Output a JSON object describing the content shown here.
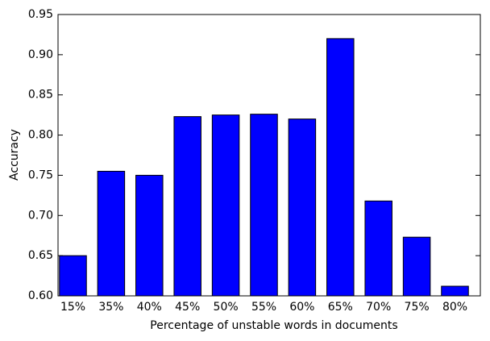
{
  "chart_data": {
    "type": "bar",
    "x_label": "Percentage of unstable words in documents",
    "y_label": "Accuracy",
    "categories": [
      "15%",
      "35%",
      "40%",
      "45%",
      "50%",
      "55%",
      "60%",
      "65%",
      "70%",
      "75%",
      "80%"
    ],
    "values": [
      0.65,
      0.755,
      0.75,
      0.823,
      0.825,
      0.826,
      0.82,
      0.92,
      0.718,
      0.673,
      0.612
    ],
    "color": "#0000ff",
    "ylim": [
      0.6,
      0.95
    ],
    "yticks": [
      {
        "value": 0.6,
        "label": "0.60"
      },
      {
        "value": 0.65,
        "label": "0.65"
      },
      {
        "value": 0.7,
        "label": "0.70"
      },
      {
        "value": 0.75,
        "label": "0.75"
      },
      {
        "value": 0.8,
        "label": "0.80"
      },
      {
        "value": 0.85,
        "label": "0.85"
      },
      {
        "value": 0.9,
        "label": "0.90"
      },
      {
        "value": 0.95,
        "label": "0.95"
      }
    ],
    "grid": false
  }
}
